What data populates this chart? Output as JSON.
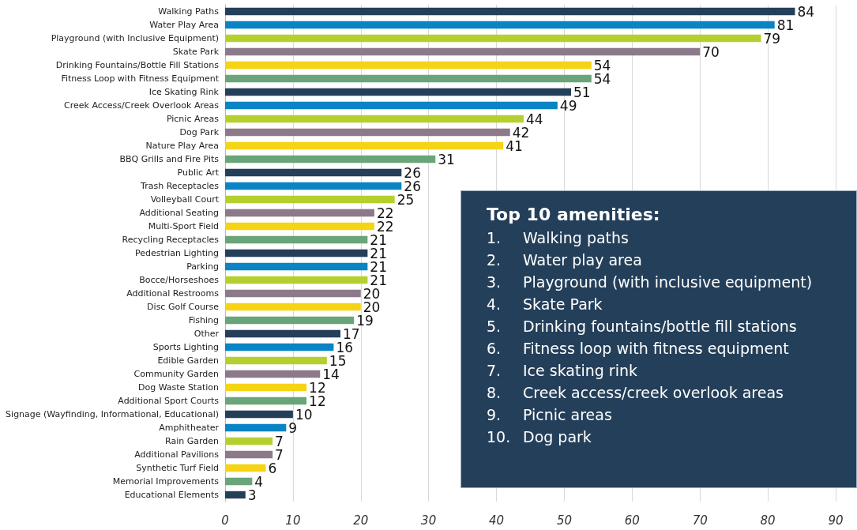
{
  "chart_data": {
    "type": "bar",
    "orientation": "horizontal",
    "data_labels": true,
    "grid": "x",
    "categories": [
      "Walking Paths",
      "Water Play Area",
      "Playground (with Inclusive Equipment)",
      "Skate Park",
      "Drinking Fountains/Bottle Fill Stations",
      "Fitness Loop with Fitness Equipment",
      "Ice Skating Rink",
      "Creek Access/Creek Overlook Areas",
      "Picnic Areas",
      "Dog Park",
      "Nature Play Area",
      "BBQ Grills and Fire Pits",
      "Public Art",
      "Trash Receptacles",
      "Volleyball Court",
      "Additional Seating",
      "Multi-Sport Field",
      "Recycling Receptacles",
      "Pedestrian Lighting",
      "Parking",
      "Bocce/Horseshoes",
      "Additional Restrooms",
      "Disc Golf Course",
      "Fishing",
      "Other",
      "Sports Lighting",
      "Edible Garden",
      "Community Garden",
      "Dog Waste Station",
      "Additional Sport Courts",
      "Signage (Wayfinding, Informational, Educational)",
      "Amphitheater",
      "Rain Garden",
      "Additional Pavilions",
      "Synthetic Turf Field",
      "Memorial Improvements",
      "Educational Elements"
    ],
    "values": [
      84,
      81,
      79,
      70,
      54,
      54,
      51,
      49,
      44,
      42,
      41,
      31,
      26,
      26,
      25,
      22,
      22,
      21,
      21,
      21,
      21,
      20,
      20,
      19,
      17,
      16,
      15,
      14,
      12,
      12,
      10,
      9,
      7,
      7,
      6,
      4,
      3
    ],
    "colors": [
      "#243f5a",
      "#0a84c4",
      "#b7cf2e",
      "#8c7a8a",
      "#f5d315",
      "#6aa57a",
      "#243f5a",
      "#0a84c4",
      "#b7cf2e",
      "#8c7a8a",
      "#f5d315",
      "#6aa57a",
      "#243f5a",
      "#0a84c4",
      "#b7cf2e",
      "#8c7a8a",
      "#f5d315",
      "#6aa57a",
      "#243f5a",
      "#0a84c4",
      "#b7cf2e",
      "#8c7a8a",
      "#f5d315",
      "#6aa57a",
      "#243f5a",
      "#0a84c4",
      "#b7cf2e",
      "#8c7a8a",
      "#f5d315",
      "#6aa57a",
      "#243f5a",
      "#0a84c4",
      "#b7cf2e",
      "#8c7a8a",
      "#f5d315",
      "#6aa57a",
      "#243f5a"
    ],
    "xlim": [
      0,
      90
    ],
    "xticks": [
      0,
      10,
      20,
      30,
      40,
      50,
      60,
      70,
      80,
      90
    ],
    "annotations": [
      "Top 10 amenities:",
      "1. Walking paths",
      "2. Water play area",
      "3. Playground (with inclusive equipment)",
      "4. Skate Park",
      "5. Drinking fountains/bottle fill stations",
      "6. Fitness loop with fitness equipment",
      "7. Ice skating rink",
      "8. Creek access/creek overlook areas",
      "9. Picnic areas",
      "10. Dog park"
    ]
  }
}
